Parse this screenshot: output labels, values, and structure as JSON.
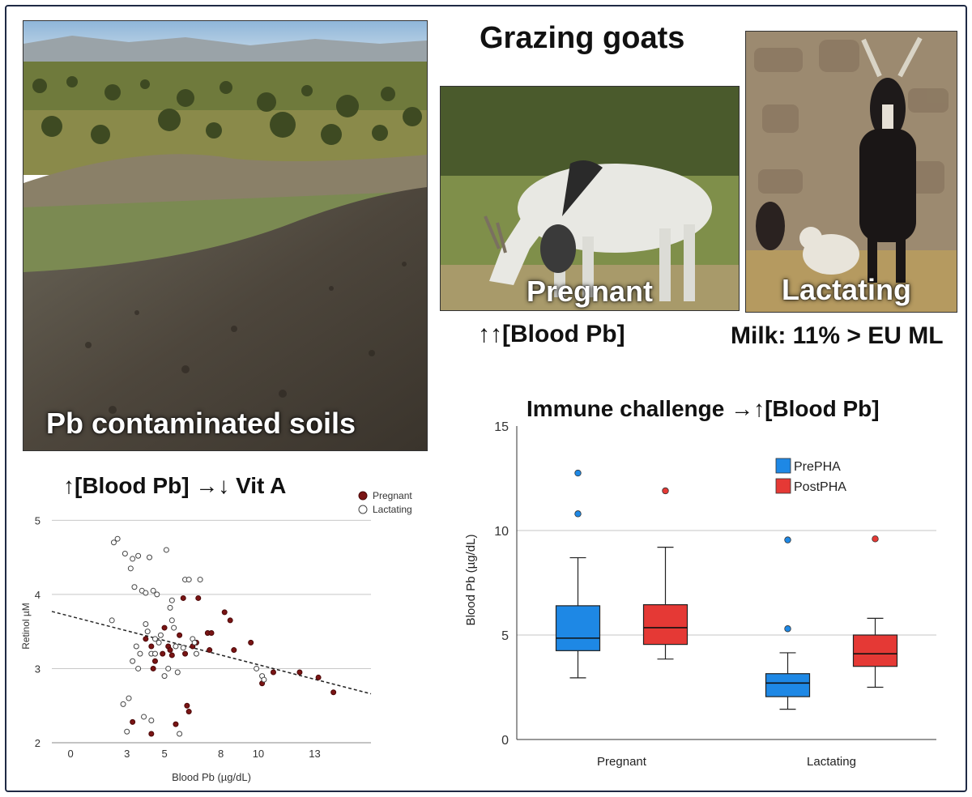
{
  "header": {
    "title": "Grazing goats"
  },
  "photos": {
    "landscape_caption": "Pb contaminated soils",
    "pregnant_caption": "Pregnant",
    "lactating_caption": "Lactating"
  },
  "annotations": {
    "pregnant_note": "↑↑[Blood Pb]",
    "lactating_note": "Milk: 11% > EU ML"
  },
  "colors": {
    "pregnant": "#7a1414",
    "lactating": "#ffffff",
    "prepha": "#1e88e5",
    "postpha": "#e53935"
  },
  "chart_data": [
    {
      "type": "scatter",
      "title": "↑[Blood Pb] →↓ Vit A",
      "xlabel": "Blood Pb (µg/dL)",
      "ylabel": "Retinol µM",
      "xlim": [
        -1,
        16
      ],
      "ylim": [
        2,
        5.2
      ],
      "xticks": [
        "0",
        "3",
        "5",
        "8",
        "10",
        "13"
      ],
      "xtick_values": [
        0,
        3,
        5,
        8,
        10,
        13
      ],
      "yticks": [
        "2",
        "3",
        "4",
        "5"
      ],
      "ytick_values": [
        2,
        3,
        4,
        5
      ],
      "gridlines": [
        3,
        4,
        5
      ],
      "trendline": {
        "x": [
          -1,
          16
        ],
        "y": [
          3.77,
          2.66
        ]
      },
      "series": [
        {
          "name": "Pregnant",
          "points": [
            [
              3.3,
              2.28
            ],
            [
              4.0,
              3.4
            ],
            [
              4.3,
              2.12
            ],
            [
              4.4,
              3.0
            ],
            [
              4.5,
              3.1
            ],
            [
              4.9,
              3.2
            ],
            [
              5.0,
              3.55
            ],
            [
              5.2,
              3.3
            ],
            [
              5.3,
              3.25
            ],
            [
              5.4,
              3.18
            ],
            [
              5.6,
              2.25
            ],
            [
              5.8,
              3.45
            ],
            [
              6.0,
              3.95
            ],
            [
              6.1,
              3.2
            ],
            [
              6.2,
              2.5
            ],
            [
              6.3,
              2.42
            ],
            [
              6.5,
              3.3
            ],
            [
              6.7,
              3.35
            ],
            [
              6.8,
              3.95
            ],
            [
              7.3,
              3.48
            ],
            [
              7.4,
              3.25
            ],
            [
              7.5,
              3.48
            ],
            [
              8.2,
              3.76
            ],
            [
              8.5,
              3.65
            ],
            [
              8.7,
              3.25
            ],
            [
              9.6,
              3.35
            ],
            [
              10.2,
              2.8
            ],
            [
              10.8,
              2.95
            ],
            [
              12.2,
              2.95
            ],
            [
              13.2,
              2.88
            ],
            [
              14.0,
              2.68
            ],
            [
              4.3,
              3.3
            ]
          ]
        },
        {
          "name": "Lactating",
          "points": [
            [
              2.2,
              3.65
            ],
            [
              2.3,
              4.7
            ],
            [
              2.5,
              4.75
            ],
            [
              2.8,
              2.52
            ],
            [
              2.9,
              4.55
            ],
            [
              3.0,
              2.15
            ],
            [
              3.1,
              2.6
            ],
            [
              3.2,
              4.35
            ],
            [
              3.3,
              3.1
            ],
            [
              3.3,
              4.48
            ],
            [
              3.4,
              4.1
            ],
            [
              3.5,
              3.3
            ],
            [
              3.6,
              4.52
            ],
            [
              3.6,
              3.0
            ],
            [
              3.7,
              3.2
            ],
            [
              3.8,
              4.05
            ],
            [
              3.9,
              2.35
            ],
            [
              4.0,
              4.02
            ],
            [
              4.0,
              3.6
            ],
            [
              4.1,
              3.5
            ],
            [
              4.2,
              4.5
            ],
            [
              4.3,
              3.2
            ],
            [
              4.3,
              2.3
            ],
            [
              4.4,
              4.05
            ],
            [
              4.5,
              3.4
            ],
            [
              4.5,
              3.2
            ],
            [
              4.6,
              4.0
            ],
            [
              4.7,
              3.35
            ],
            [
              4.8,
              3.45
            ],
            [
              5.0,
              2.9
            ],
            [
              5.1,
              4.6
            ],
            [
              5.2,
              3.0
            ],
            [
              5.3,
              3.82
            ],
            [
              5.4,
              3.92
            ],
            [
              5.4,
              3.65
            ],
            [
              5.5,
              3.55
            ],
            [
              5.6,
              3.3
            ],
            [
              5.7,
              2.95
            ],
            [
              5.8,
              2.12
            ],
            [
              6.0,
              3.28
            ],
            [
              6.1,
              4.2
            ],
            [
              6.3,
              4.2
            ],
            [
              6.5,
              3.4
            ],
            [
              6.6,
              3.35
            ],
            [
              6.7,
              3.2
            ],
            [
              6.9,
              4.2
            ],
            [
              10.2,
              2.9
            ],
            [
              10.3,
              2.85
            ],
            [
              9.9,
              3.0
            ]
          ]
        }
      ],
      "legend": [
        "Pregnant",
        "Lactating"
      ],
      "legend_position": "top-right"
    },
    {
      "type": "box",
      "title": "Immune challenge →↑[Blood Pb]",
      "ylabel": "Blood Pb (µg/dL)",
      "ylim": [
        0,
        15
      ],
      "yticks": [
        "0",
        "5",
        "10",
        "15"
      ],
      "ytick_values": [
        0,
        5,
        10,
        15
      ],
      "gridlines": [
        5,
        10
      ],
      "categories": [
        "Pregnant",
        "Lactating"
      ],
      "legend": [
        "PrePHA",
        "PostPHA"
      ],
      "legend_position": "top-right",
      "boxes": [
        {
          "group": "Pregnant",
          "series": "PrePHA",
          "min": 2.95,
          "q1": 4.25,
          "median": 4.85,
          "q3": 6.4,
          "max": 8.7,
          "outliers": [
            10.8,
            12.75
          ]
        },
        {
          "group": "Pregnant",
          "series": "PostPHA",
          "min": 3.85,
          "q1": 4.55,
          "median": 5.35,
          "q3": 6.45,
          "max": 9.2,
          "outliers": [
            11.9
          ]
        },
        {
          "group": "Lactating",
          "series": "PrePHA",
          "min": 1.45,
          "q1": 2.05,
          "median": 2.7,
          "q3": 3.15,
          "max": 4.15,
          "outliers": [
            5.3,
            9.55
          ]
        },
        {
          "group": "Lactating",
          "series": "PostPHA",
          "min": 2.5,
          "q1": 3.5,
          "median": 4.1,
          "q3": 5.0,
          "max": 5.8,
          "outliers": [
            9.6
          ]
        }
      ]
    }
  ]
}
